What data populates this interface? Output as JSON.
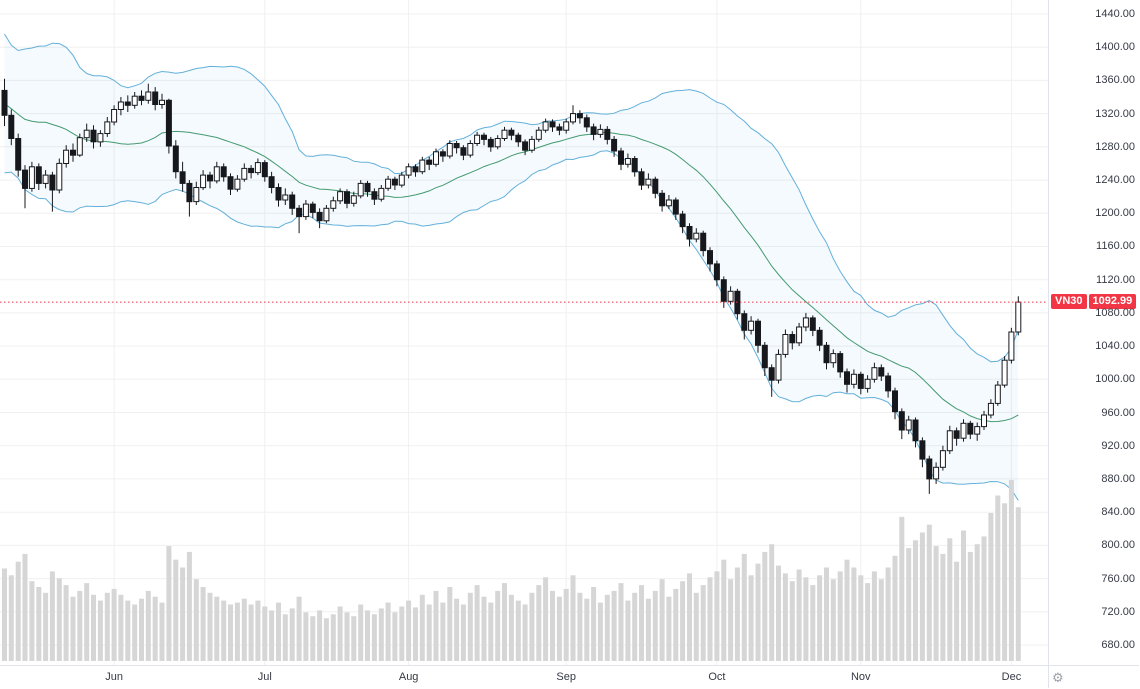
{
  "header": {
    "symbol": "VN30",
    "last_price_label": "1092.99"
  },
  "colors": {
    "accent_red": "#f23645",
    "grid": "#f0f0f0",
    "candle": "#16181d",
    "volume": "#d6d6d6",
    "band_line": "#63b0da",
    "band_fill": "#2196f3",
    "basis_line": "#459a6e",
    "axis_text": "#363a45",
    "axis_border": "#e0e3eb"
  },
  "axes": {
    "price_tick_labels": [
      "1440.00",
      "1400.00",
      "1360.00",
      "1320.00",
      "1280.00",
      "1240.00",
      "1200.00",
      "1160.00",
      "1120.00",
      "1080.00",
      "1040.00",
      "1000.00",
      "960.00",
      "920.00",
      "880.00",
      "840.00",
      "800.00",
      "760.00",
      "720.00",
      "680.00"
    ],
    "time_tick_labels": [
      "Jun",
      "Jul",
      "Aug",
      "Sep",
      "Oct",
      "Nov",
      "Dec"
    ]
  },
  "corner": {
    "gear": "⚙"
  },
  "chart_data": {
    "type": "candlestick",
    "title": "VN30 daily candlestick chart with Bollinger Bands (20,2) and volume",
    "symbol": "VN30",
    "last_price": 1092.99,
    "price_axis": {
      "min": 680,
      "max": 1440,
      "step": 40
    },
    "grid": true,
    "overlays": {
      "bollinger": {
        "window": 20,
        "mult": 2
      }
    },
    "months": [
      {
        "label": "Jun",
        "index": 16
      },
      {
        "label": "Jul",
        "index": 38
      },
      {
        "label": "Aug",
        "index": 59
      },
      {
        "label": "Sep",
        "index": 82
      },
      {
        "label": "Oct",
        "index": 104
      },
      {
        "label": "Nov",
        "index": 125
      },
      {
        "label": "Dec",
        "index": 147
      }
    ],
    "pre_closes": [
      1430,
      1415,
      1390,
      1350,
      1300,
      1262,
      1248,
      1280,
      1310,
      1345,
      1370,
      1388,
      1352,
      1318,
      1295,
      1322,
      1348,
      1362,
      1342,
      1330
    ],
    "candles": [
      [
        1348,
        1362,
        1305,
        1318
      ],
      [
        1318,
        1325,
        1282,
        1290
      ],
      [
        1290,
        1296,
        1244,
        1252
      ],
      [
        1252,
        1258,
        1206,
        1230
      ],
      [
        1230,
        1262,
        1226,
        1256
      ],
      [
        1256,
        1260,
        1228,
        1236
      ],
      [
        1236,
        1252,
        1230,
        1246
      ],
      [
        1246,
        1250,
        1202,
        1228
      ],
      [
        1228,
        1266,
        1224,
        1260
      ],
      [
        1260,
        1282,
        1255,
        1276
      ],
      [
        1276,
        1284,
        1262,
        1270
      ],
      [
        1270,
        1296,
        1268,
        1291
      ],
      [
        1291,
        1308,
        1286,
        1300
      ],
      [
        1300,
        1306,
        1278,
        1286
      ],
      [
        1286,
        1300,
        1280,
        1296
      ],
      [
        1296,
        1316,
        1292,
        1310
      ],
      [
        1310,
        1330,
        1306,
        1325
      ],
      [
        1325,
        1340,
        1318,
        1334
      ],
      [
        1334,
        1342,
        1322,
        1330
      ],
      [
        1330,
        1346,
        1326,
        1341
      ],
      [
        1341,
        1348,
        1330,
        1336
      ],
      [
        1336,
        1356,
        1332,
        1346
      ],
      [
        1346,
        1352,
        1324,
        1331
      ],
      [
        1331,
        1344,
        1326,
        1336
      ],
      [
        1336,
        1338,
        1272,
        1281
      ],
      [
        1281,
        1288,
        1242,
        1250
      ],
      [
        1250,
        1262,
        1226,
        1236
      ],
      [
        1236,
        1240,
        1196,
        1214
      ],
      [
        1214,
        1238,
        1210,
        1231
      ],
      [
        1231,
        1252,
        1228,
        1246
      ],
      [
        1246,
        1250,
        1230,
        1239
      ],
      [
        1239,
        1262,
        1236,
        1256
      ],
      [
        1256,
        1260,
        1238,
        1244
      ],
      [
        1244,
        1248,
        1222,
        1229
      ],
      [
        1229,
        1246,
        1226,
        1241
      ],
      [
        1241,
        1260,
        1238,
        1254
      ],
      [
        1254,
        1258,
        1242,
        1249
      ],
      [
        1249,
        1266,
        1246,
        1261
      ],
      [
        1261,
        1264,
        1238,
        1244
      ],
      [
        1244,
        1250,
        1224,
        1231
      ],
      [
        1231,
        1236,
        1208,
        1216
      ],
      [
        1216,
        1230,
        1210,
        1222
      ],
      [
        1222,
        1226,
        1198,
        1206
      ],
      [
        1206,
        1210,
        1176,
        1196
      ],
      [
        1196,
        1216,
        1192,
        1211
      ],
      [
        1211,
        1214,
        1194,
        1201
      ],
      [
        1201,
        1206,
        1182,
        1191
      ],
      [
        1191,
        1210,
        1188,
        1206
      ],
      [
        1206,
        1220,
        1202,
        1215
      ],
      [
        1215,
        1230,
        1211,
        1226
      ],
      [
        1226,
        1229,
        1206,
        1212
      ],
      [
        1212,
        1226,
        1208,
        1221
      ],
      [
        1221,
        1240,
        1218,
        1236
      ],
      [
        1236,
        1239,
        1220,
        1226
      ],
      [
        1226,
        1230,
        1210,
        1217
      ],
      [
        1217,
        1234,
        1214,
        1230
      ],
      [
        1230,
        1245,
        1227,
        1241
      ],
      [
        1241,
        1244,
        1228,
        1234
      ],
      [
        1234,
        1250,
        1231,
        1246
      ],
      [
        1246,
        1260,
        1242,
        1256
      ],
      [
        1256,
        1259,
        1244,
        1250
      ],
      [
        1250,
        1268,
        1247,
        1264
      ],
      [
        1264,
        1268,
        1252,
        1259
      ],
      [
        1259,
        1278,
        1256,
        1274
      ],
      [
        1274,
        1277,
        1262,
        1269
      ],
      [
        1269,
        1288,
        1266,
        1284
      ],
      [
        1284,
        1287,
        1272,
        1279
      ],
      [
        1279,
        1282,
        1264,
        1270
      ],
      [
        1270,
        1288,
        1267,
        1284
      ],
      [
        1284,
        1298,
        1281,
        1294
      ],
      [
        1294,
        1297,
        1282,
        1289
      ],
      [
        1289,
        1292,
        1274,
        1280
      ],
      [
        1280,
        1294,
        1277,
        1290
      ],
      [
        1290,
        1304,
        1287,
        1300
      ],
      [
        1300,
        1303,
        1288,
        1294
      ],
      [
        1294,
        1297,
        1280,
        1286
      ],
      [
        1286,
        1289,
        1270,
        1276
      ],
      [
        1276,
        1293,
        1273,
        1289
      ],
      [
        1289,
        1304,
        1286,
        1300
      ],
      [
        1300,
        1314,
        1297,
        1310
      ],
      [
        1310,
        1313,
        1298,
        1304
      ],
      [
        1304,
        1308,
        1294,
        1300
      ],
      [
        1300,
        1314,
        1296,
        1310
      ],
      [
        1310,
        1330,
        1307,
        1320
      ],
      [
        1320,
        1324,
        1308,
        1315
      ],
      [
        1315,
        1319,
        1298,
        1304
      ],
      [
        1304,
        1308,
        1288,
        1295
      ],
      [
        1295,
        1307,
        1291,
        1301
      ],
      [
        1301,
        1305,
        1283,
        1289
      ],
      [
        1289,
        1293,
        1268,
        1275
      ],
      [
        1275,
        1279,
        1252,
        1259
      ],
      [
        1259,
        1272,
        1255,
        1266
      ],
      [
        1266,
        1269,
        1244,
        1250
      ],
      [
        1250,
        1254,
        1228,
        1234
      ],
      [
        1234,
        1248,
        1230,
        1241
      ],
      [
        1241,
        1244,
        1218,
        1224
      ],
      [
        1224,
        1228,
        1202,
        1209
      ],
      [
        1209,
        1222,
        1205,
        1216
      ],
      [
        1216,
        1219,
        1192,
        1199
      ],
      [
        1199,
        1203,
        1176,
        1184
      ],
      [
        1184,
        1188,
        1160,
        1169
      ],
      [
        1169,
        1182,
        1165,
        1176
      ],
      [
        1176,
        1179,
        1148,
        1155
      ],
      [
        1155,
        1159,
        1130,
        1139
      ],
      [
        1139,
        1143,
        1112,
        1120
      ],
      [
        1120,
        1124,
        1086,
        1094
      ],
      [
        1094,
        1112,
        1090,
        1106
      ],
      [
        1106,
        1109,
        1072,
        1079
      ],
      [
        1079,
        1083,
        1048,
        1059
      ],
      [
        1059,
        1076,
        1054,
        1070
      ],
      [
        1070,
        1073,
        1032,
        1041
      ],
      [
        1041,
        1045,
        1004,
        1014
      ],
      [
        1014,
        1018,
        979,
        999
      ],
      [
        999,
        1036,
        995,
        1030
      ],
      [
        1030,
        1060,
        1026,
        1054
      ],
      [
        1054,
        1058,
        1036,
        1044
      ],
      [
        1044,
        1068,
        1040,
        1063
      ],
      [
        1063,
        1080,
        1058,
        1074
      ],
      [
        1074,
        1077,
        1052,
        1059
      ],
      [
        1059,
        1063,
        1034,
        1041
      ],
      [
        1041,
        1045,
        1012,
        1020
      ],
      [
        1020,
        1036,
        1014,
        1031
      ],
      [
        1031,
        1034,
        1002,
        1009
      ],
      [
        1009,
        1013,
        984,
        994
      ],
      [
        994,
        1012,
        989,
        1006
      ],
      [
        1006,
        1009,
        982,
        989
      ],
      [
        989,
        1005,
        984,
        1000
      ],
      [
        1000,
        1020,
        996,
        1014
      ],
      [
        1014,
        1018,
        998,
        1004
      ],
      [
        1004,
        1008,
        978,
        986
      ],
      [
        986,
        990,
        952,
        961
      ],
      [
        961,
        965,
        928,
        939
      ],
      [
        939,
        956,
        934,
        951
      ],
      [
        951,
        954,
        918,
        926
      ],
      [
        926,
        930,
        894,
        904
      ],
      [
        904,
        908,
        862,
        880
      ],
      [
        880,
        900,
        874,
        894
      ],
      [
        894,
        920,
        890,
        914
      ],
      [
        914,
        944,
        910,
        938
      ],
      [
        938,
        942,
        920,
        929
      ],
      [
        929,
        952,
        925,
        947
      ],
      [
        947,
        950,
        928,
        934
      ],
      [
        934,
        948,
        926,
        943
      ],
      [
        943,
        962,
        939,
        957
      ],
      [
        957,
        976,
        953,
        971
      ],
      [
        971,
        998,
        968,
        993
      ],
      [
        993,
        1028,
        990,
        1023
      ],
      [
        1023,
        1062,
        1019,
        1057
      ],
      [
        1057,
        1100,
        1053,
        1092.99
      ]
    ],
    "volumes": [
      95,
      88,
      102,
      110,
      82,
      76,
      70,
      92,
      85,
      78,
      66,
      72,
      80,
      68,
      62,
      70,
      74,
      68,
      62,
      58,
      64,
      72,
      66,
      60,
      118,
      104,
      96,
      112,
      84,
      76,
      70,
      66,
      62,
      58,
      60,
      64,
      58,
      62,
      56,
      52,
      60,
      48,
      54,
      66,
      50,
      46,
      52,
      44,
      48,
      56,
      50,
      46,
      58,
      52,
      48,
      54,
      60,
      50,
      56,
      62,
      55,
      68,
      58,
      72,
      60,
      76,
      64,
      58,
      70,
      78,
      66,
      60,
      72,
      80,
      68,
      62,
      58,
      70,
      78,
      86,
      72,
      66,
      74,
      88,
      70,
      64,
      76,
      60,
      68,
      72,
      80,
      62,
      70,
      78,
      64,
      72,
      84,
      66,
      74,
      82,
      90,
      70,
      78,
      86,
      92,
      104,
      84,
      96,
      110,
      88,
      100,
      112,
      120,
      98,
      90,
      82,
      94,
      86,
      78,
      88,
      96,
      84,
      92,
      104,
      96,
      88,
      80,
      92,
      84,
      96,
      108,
      148,
      116,
      124,
      132,
      140,
      118,
      110,
      126,
      102,
      134,
      112,
      120,
      128,
      152,
      170,
      162,
      186,
      158
    ],
    "volume_max_units": 190
  }
}
